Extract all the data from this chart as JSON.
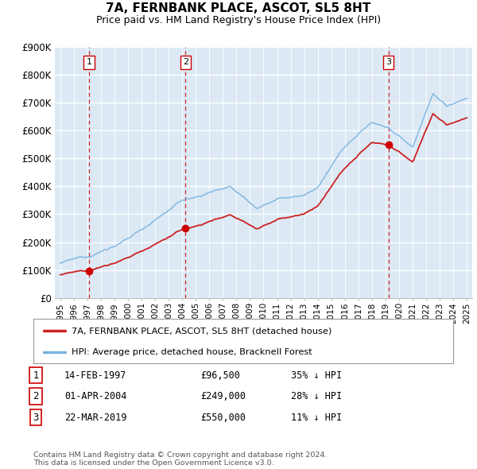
{
  "title": "7A, FERNBANK PLACE, ASCOT, SL5 8HT",
  "subtitle": "Price paid vs. HM Land Registry's House Price Index (HPI)",
  "ylim": [
    0,
    900000
  ],
  "yticks": [
    0,
    100000,
    200000,
    300000,
    400000,
    500000,
    600000,
    700000,
    800000,
    900000
  ],
  "ytick_labels": [
    "£0",
    "£100K",
    "£200K",
    "£300K",
    "£400K",
    "£500K",
    "£600K",
    "£700K",
    "£800K",
    "£900K"
  ],
  "xlim_start": 1994.6,
  "xlim_end": 2025.4,
  "bg_color": "#dce9f5",
  "grid_color": "#ffffff",
  "sale_dates": [
    1997.12,
    2004.25,
    2019.22
  ],
  "sale_prices": [
    96500,
    249000,
    550000
  ],
  "sale_labels": [
    "1",
    "2",
    "3"
  ],
  "vline_color": "#cc0000",
  "dot_color": "#cc0000",
  "hpi_line_color": "#7ab3e0",
  "price_line_color": "#cc2222",
  "legend_line1": "7A, FERNBANK PLACE, ASCOT, SL5 8HT (detached house)",
  "legend_line2": "HPI: Average price, detached house, Bracknell Forest",
  "table_rows": [
    {
      "label": "1",
      "date": "14-FEB-1997",
      "price": "£96,500",
      "hpi": "35% ↓ HPI"
    },
    {
      "label": "2",
      "date": "01-APR-2004",
      "price": "£249,000",
      "hpi": "28% ↓ HPI"
    },
    {
      "label": "3",
      "date": "22-MAR-2019",
      "price": "£550,000",
      "hpi": "11% ↓ HPI"
    }
  ],
  "footer": "Contains HM Land Registry data © Crown copyright and database right 2024.\nThis data is licensed under the Open Government Licence v3.0."
}
